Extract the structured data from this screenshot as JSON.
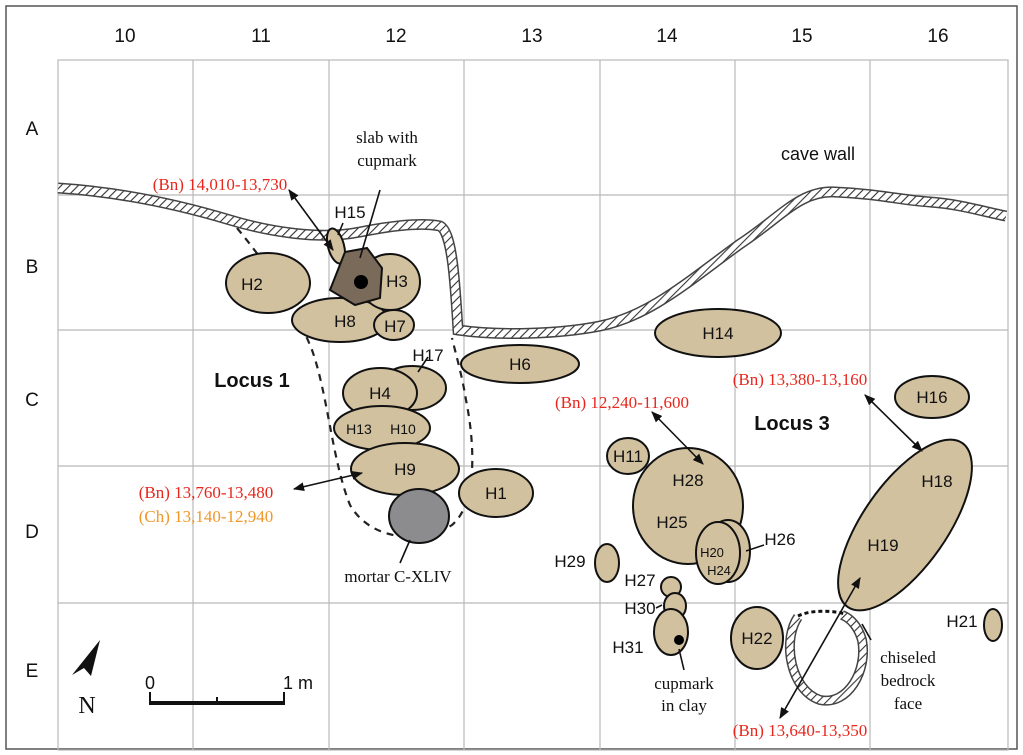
{
  "grid": {
    "columns": [
      "10",
      "11",
      "12",
      "13",
      "14",
      "15",
      "16"
    ],
    "rows": [
      "A",
      "B",
      "C",
      "D",
      "E"
    ]
  },
  "features": [
    {
      "id": "h2",
      "label": "H2"
    },
    {
      "id": "h8",
      "label": "H8"
    },
    {
      "id": "h7",
      "label": "H7"
    },
    {
      "id": "h3",
      "label": "H3"
    },
    {
      "id": "h15",
      "label": "H15"
    },
    {
      "id": "h17",
      "label": "H17"
    },
    {
      "id": "h4",
      "label": "H4"
    },
    {
      "id": "h13",
      "label": "H13"
    },
    {
      "id": "h10",
      "label": "H10"
    },
    {
      "id": "h9",
      "label": "H9"
    },
    {
      "id": "h6",
      "label": "H6"
    },
    {
      "id": "h1",
      "label": "H1"
    },
    {
      "id": "h14",
      "label": "H14"
    },
    {
      "id": "h16",
      "label": "H16"
    },
    {
      "id": "h11",
      "label": "H11"
    },
    {
      "id": "h28",
      "label": "H28"
    },
    {
      "id": "h25",
      "label": "H25"
    },
    {
      "id": "h20",
      "label": "H20"
    },
    {
      "id": "h24",
      "label": "H24"
    },
    {
      "id": "h26",
      "label": "H26"
    },
    {
      "id": "h29",
      "label": "H29"
    },
    {
      "id": "h27",
      "label": "H27"
    },
    {
      "id": "h30",
      "label": "H30"
    },
    {
      "id": "h31",
      "label": "H31"
    },
    {
      "id": "h22",
      "label": "H22"
    },
    {
      "id": "h18",
      "label": "H18"
    },
    {
      "id": "h19",
      "label": "H19"
    },
    {
      "id": "h21",
      "label": "H21"
    }
  ],
  "loci": {
    "locus1": "Locus 1",
    "locus3": "Locus 3"
  },
  "annotations": {
    "slab_line1": "slab with",
    "slab_line2": "cupmark",
    "cave_wall": "cave wall",
    "mortar": "mortar C-XLIV",
    "cupmark_clay_line1": "cupmark",
    "cupmark_clay_line2": "in clay",
    "chiseled_line1": "chiseled",
    "chiseled_line2": "bedrock",
    "chiseled_line3": "face"
  },
  "dates": {
    "d1": "(Bn) 14,010-13,730",
    "d2": "(Bn) 13,760-13,480",
    "d3": "(Ch) 13,140-12,940",
    "d4": "(Bn) 12,240-11,600",
    "d5": "(Bn) 13,380-13,160",
    "d6": "(Bn) 13,640-13,350"
  },
  "scale": {
    "start": "0",
    "end": "1 m"
  },
  "north": "N",
  "colors": {
    "pit_fill": "#d2c19f",
    "slab_fill": "#7a6a5a",
    "mortar_fill": "#8c8c8e",
    "date_bn": "#e8261c",
    "date_ch": "#f0962a",
    "grid_line": "#b9b9b9"
  }
}
